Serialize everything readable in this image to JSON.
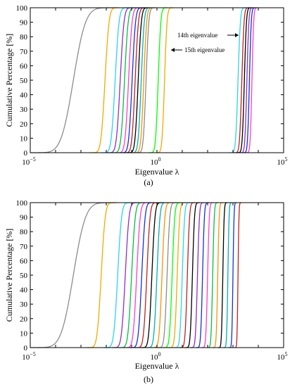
{
  "chart_data": [
    {
      "panel": "a",
      "type": "line",
      "panel_label": "(a)",
      "xlabel": "Eigenvalue λ",
      "ylabel": "Cumulative Percentage [%]",
      "xscale": "log",
      "xlim": [
        1e-05,
        100000.0
      ],
      "ylim": [
        0,
        100
      ],
      "yticks": [
        0,
        10,
        20,
        30,
        40,
        50,
        60,
        70,
        80,
        90,
        100
      ],
      "xticks": [
        {
          "base": "10",
          "exp": "−5",
          "value": 1e-05
        },
        {
          "base": "10",
          "exp": "0",
          "value": 1
        },
        {
          "base": "10",
          "exp": "5",
          "value": 100000.0
        }
      ],
      "grid": false,
      "legend": "none",
      "annotations": [
        {
          "text": "14th eigenvalue",
          "points_to": "series 14",
          "arrow": "right"
        },
        {
          "text": "15th eigenvalue",
          "points_to": "series 15",
          "arrow": "left"
        }
      ],
      "curves": {
        "description_values": "log10 of eigenvalue at 50% cumulative percentage for each eigenvalue index",
        "log10_median": [
          -3.3,
          -2.05,
          -1.65,
          -1.45,
          -1.28,
          -1.12,
          -0.98,
          -0.86,
          -0.74,
          -0.62,
          -0.52,
          -0.43,
          0.05,
          0.3,
          3.2,
          3.35,
          3.45,
          3.55,
          3.65,
          3.75
        ],
        "colors": [
          "#8c8c8c",
          "#f5a800",
          "#28d4f0",
          "#8b2fc9",
          "#00c040",
          "#ff3cc8",
          "#1030e0",
          "#c02020",
          "#000000",
          "#00b0b0",
          "#ff9000",
          "#8c8c8c",
          "#00ff00",
          "#f5a800",
          "#28d4f0",
          "#c02020",
          "#000000",
          "#8b2fc9",
          "#1030e0",
          "#ff3cc8"
        ]
      }
    },
    {
      "panel": "b",
      "type": "line",
      "panel_label": "(b)",
      "xlabel": "Eigenvalue λ",
      "ylabel": "Cumulative Percentage [%]",
      "xscale": "log",
      "xlim": [
        1e-05,
        100000.0
      ],
      "ylim": [
        0,
        100
      ],
      "yticks": [
        0,
        10,
        20,
        30,
        40,
        50,
        60,
        70,
        80,
        90,
        100
      ],
      "xticks": [
        {
          "base": "10",
          "exp": "−5",
          "value": 1e-05
        },
        {
          "base": "10",
          "exp": "0",
          "value": 1
        },
        {
          "base": "10",
          "exp": "5",
          "value": 100000.0
        }
      ],
      "grid": false,
      "legend": "none",
      "curves": {
        "description_values": "log10 of eigenvalue at 50% cumulative percentage for each eigenvalue index",
        "log10_median": [
          -3.3,
          -2.2,
          -1.55,
          -1.25,
          -1.0,
          -0.8,
          -0.6,
          -0.4,
          -0.2,
          0.0,
          0.2,
          0.4,
          0.6,
          0.8,
          1.0,
          1.2,
          1.4,
          1.6,
          1.8,
          2.0,
          2.2,
          2.4,
          2.6,
          2.8,
          3.0,
          3.2
        ],
        "colors": [
          "#8c8c8c",
          "#f5a800",
          "#28d4f0",
          "#8b2fc9",
          "#00c040",
          "#ff3cc8",
          "#1030e0",
          "#c02020",
          "#000000",
          "#00b0b0",
          "#ff9000",
          "#8c8c8c",
          "#00ff00",
          "#f5a800",
          "#28d4f0",
          "#c02020",
          "#000000",
          "#8b2fc9",
          "#1030e0",
          "#ff3cc8",
          "#00c040",
          "#ff9000",
          "#000000",
          "#00b0b0",
          "#1030e0",
          "#c02020"
        ]
      }
    }
  ]
}
